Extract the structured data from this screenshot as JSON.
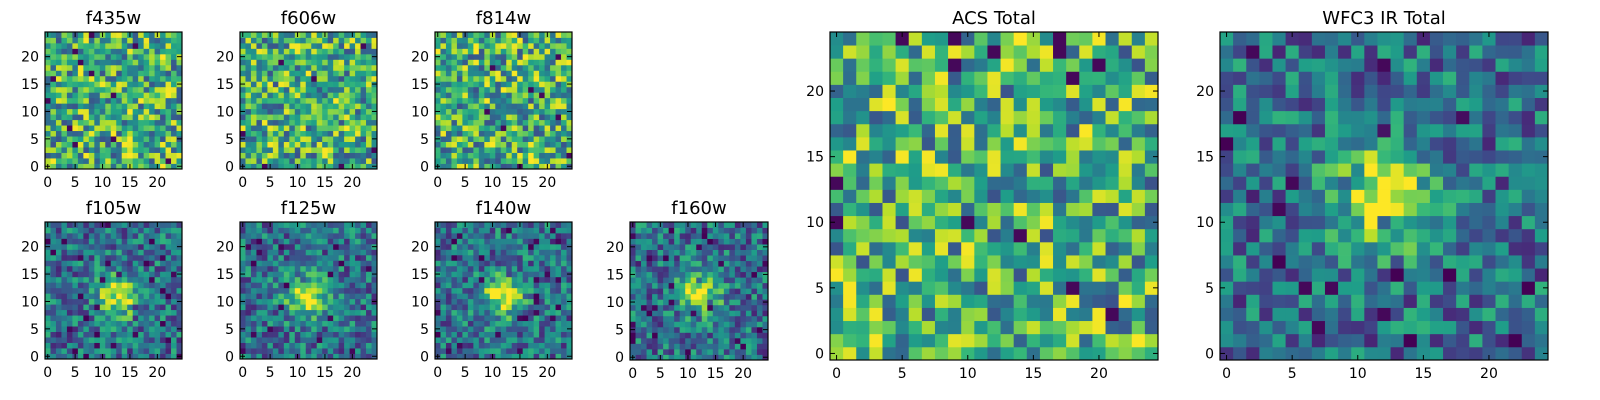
{
  "chart_data": [
    {
      "type": "heatmap",
      "title": "f435w",
      "grid": "25x25",
      "colormap": "viridis",
      "xlim": [
        0,
        24
      ],
      "ylim": [
        0,
        24
      ],
      "xticks": [
        0,
        5,
        10,
        15,
        20
      ],
      "yticks": [
        0,
        5,
        10,
        15,
        20
      ],
      "xtick_labels": [
        "0",
        "5",
        "10",
        "15",
        "20"
      ],
      "ytick_labels": [
        "0",
        "5",
        "10",
        "15",
        "20"
      ],
      "pattern": "noise"
    },
    {
      "type": "heatmap",
      "title": "f606w",
      "grid": "25x25",
      "colormap": "viridis",
      "xlim": [
        0,
        24
      ],
      "ylim": [
        0,
        24
      ],
      "xticks": [
        0,
        5,
        10,
        15,
        20
      ],
      "yticks": [
        0,
        5,
        10,
        15,
        20
      ],
      "xtick_labels": [
        "0",
        "5",
        "10",
        "15",
        "20"
      ],
      "ytick_labels": [
        "0",
        "5",
        "10",
        "15",
        "20"
      ],
      "pattern": "noise"
    },
    {
      "type": "heatmap",
      "title": "f814w",
      "grid": "25x25",
      "colormap": "viridis",
      "xlim": [
        0,
        24
      ],
      "ylim": [
        0,
        24
      ],
      "xticks": [
        0,
        5,
        10,
        15,
        20
      ],
      "yticks": [
        0,
        5,
        10,
        15,
        20
      ],
      "xtick_labels": [
        "0",
        "5",
        "10",
        "15",
        "20"
      ],
      "ytick_labels": [
        "0",
        "5",
        "10",
        "15",
        "20"
      ],
      "pattern": "noise"
    },
    {
      "type": "heatmap",
      "title": "f105w",
      "grid": "25x25",
      "colormap": "viridis",
      "xlim": [
        0,
        24
      ],
      "ylim": [
        0,
        24
      ],
      "xticks": [
        0,
        5,
        10,
        15,
        20
      ],
      "yticks": [
        0,
        5,
        10,
        15,
        20
      ],
      "xtick_labels": [
        "0",
        "5",
        "10",
        "15",
        "20"
      ],
      "ytick_labels": [
        "0",
        "5",
        "10",
        "15",
        "20"
      ],
      "pattern": "source",
      "source_center": [
        13,
        11
      ]
    },
    {
      "type": "heatmap",
      "title": "f125w",
      "grid": "25x25",
      "colormap": "viridis",
      "xlim": [
        0,
        24
      ],
      "ylim": [
        0,
        24
      ],
      "xticks": [
        0,
        5,
        10,
        15,
        20
      ],
      "yticks": [
        0,
        5,
        10,
        15,
        20
      ],
      "xtick_labels": [
        "0",
        "5",
        "10",
        "15",
        "20"
      ],
      "ytick_labels": [
        "0",
        "5",
        "10",
        "15",
        "20"
      ],
      "pattern": "source",
      "source_center": [
        12,
        11
      ]
    },
    {
      "type": "heatmap",
      "title": "f140w",
      "grid": "25x25",
      "colormap": "viridis",
      "xlim": [
        0,
        24
      ],
      "ylim": [
        0,
        24
      ],
      "xticks": [
        0,
        5,
        10,
        15,
        20
      ],
      "yticks": [
        0,
        5,
        10,
        15,
        20
      ],
      "xtick_labels": [
        "0",
        "5",
        "10",
        "15",
        "20"
      ],
      "ytick_labels": [
        "0",
        "5",
        "10",
        "15",
        "20"
      ],
      "pattern": "source",
      "source_center": [
        12,
        11
      ]
    },
    {
      "type": "heatmap",
      "title": "f160w",
      "grid": "25x25",
      "colormap": "viridis",
      "xlim": [
        0,
        24
      ],
      "ylim": [
        0,
        24
      ],
      "xticks": [
        0,
        5,
        10,
        15,
        20
      ],
      "yticks": [
        0,
        5,
        10,
        15,
        20
      ],
      "xtick_labels": [
        "0",
        "5",
        "10",
        "15",
        "20"
      ],
      "ytick_labels": [
        "0",
        "5",
        "10",
        "15",
        "20"
      ],
      "pattern": "source",
      "source_center": [
        12,
        12
      ]
    },
    {
      "type": "heatmap",
      "title": "ACS Total",
      "grid": "25x25",
      "colormap": "viridis",
      "xlim": [
        0,
        24
      ],
      "ylim": [
        0,
        24
      ],
      "xticks": [
        0,
        5,
        10,
        15,
        20
      ],
      "yticks": [
        0,
        5,
        10,
        15,
        20
      ],
      "xtick_labels": [
        "0",
        "5",
        "10",
        "15",
        "20"
      ],
      "ytick_labels": [
        "0",
        "5",
        "10",
        "15",
        "20"
      ],
      "pattern": "noise"
    },
    {
      "type": "heatmap",
      "title": "WFC3 IR Total",
      "grid": "25x25",
      "colormap": "viridis",
      "xlim": [
        0,
        24
      ],
      "ylim": [
        0,
        24
      ],
      "xticks": [
        0,
        5,
        10,
        15,
        20
      ],
      "yticks": [
        0,
        5,
        10,
        15,
        20
      ],
      "xtick_labels": [
        "0",
        "5",
        "10",
        "15",
        "20"
      ],
      "ytick_labels": [
        "0",
        "5",
        "10",
        "15",
        "20"
      ],
      "pattern": "source",
      "source_center": [
        12,
        12
      ]
    }
  ]
}
